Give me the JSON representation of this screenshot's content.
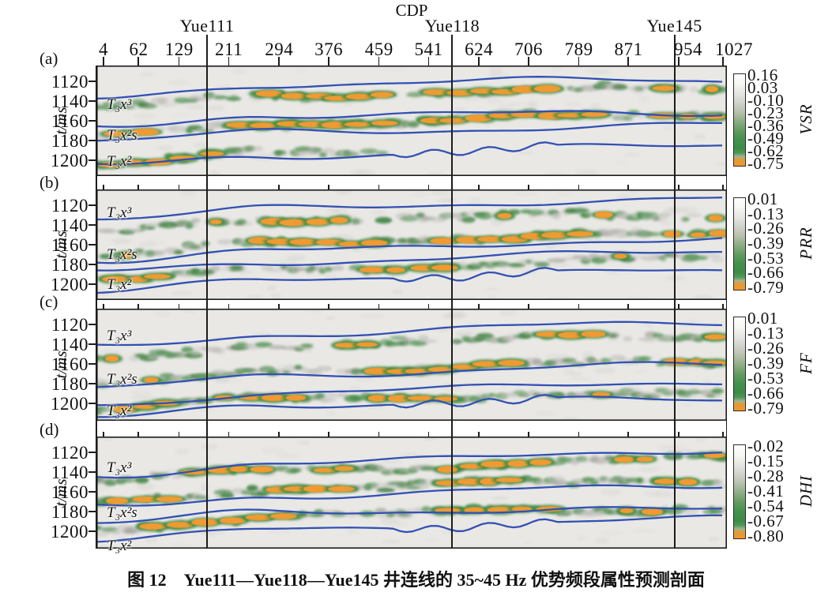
{
  "figure": {
    "caption": "图 12　Yue111—Yue118—Yue145 井连线的 35~45 Hz 优势频段属性预测剖面",
    "x_axis_title": "CDP",
    "y_axis_label": "t/ms"
  },
  "chart_data": {
    "type": "heatmap",
    "x_axis": {
      "title": "CDP",
      "ticks": [
        4,
        62,
        129,
        211,
        294,
        376,
        459,
        541,
        624,
        706,
        789,
        871,
        954,
        1027
      ]
    },
    "y_axis": {
      "label": "t/ms",
      "ticks": [
        1120,
        1140,
        1160,
        1180,
        1200
      ],
      "unit": "ms"
    },
    "wells": [
      {
        "name": "Yue111",
        "cdp_approx": 175
      },
      {
        "name": "Yue118",
        "cdp_approx": 580
      },
      {
        "name": "Yue145",
        "cdp_approx": 947
      }
    ],
    "horizon_labels": [
      "T₃x³",
      "T₃x²s",
      "T₃x²"
    ],
    "panels": [
      {
        "id": "(a)",
        "attribute": "VSR",
        "colorbar_ticks": [
          "0.16",
          "0.03",
          "-0.10",
          "-0.23",
          "-0.36",
          "-0.49",
          "-0.62",
          "-0.75"
        ]
      },
      {
        "id": "(b)",
        "attribute": "PRR",
        "colorbar_ticks": [
          "0.01",
          "-0.13",
          "-0.26",
          "-0.39",
          "-0.53",
          "-0.66",
          "-0.79"
        ]
      },
      {
        "id": "(c)",
        "attribute": "FF",
        "colorbar_ticks": [
          "0.01",
          "-0.13",
          "-0.26",
          "-0.39",
          "-0.53",
          "-0.66",
          "-0.79"
        ]
      },
      {
        "id": "(d)",
        "attribute": "DHI",
        "colorbar_ticks": [
          "-0.02",
          "-0.15",
          "-0.28",
          "-0.41",
          "-0.54",
          "-0.67",
          "-0.80"
        ]
      }
    ],
    "colors": {
      "panel_background": "#e9e8e5",
      "horizon_line_blue": "#3351b3",
      "anomaly_green": "#418c42",
      "strong_anomaly_orange": "#ef9a30",
      "colorbar_top_white": "#ffffff"
    }
  }
}
